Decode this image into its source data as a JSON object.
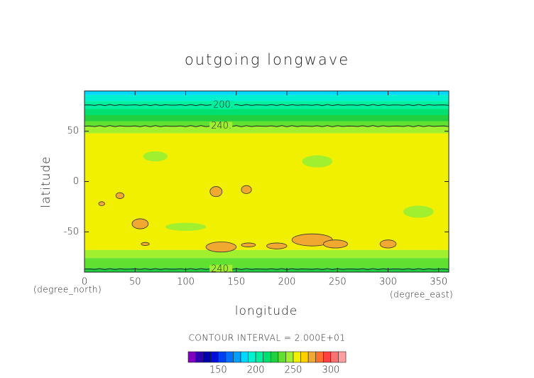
{
  "chart_data": {
    "type": "contour",
    "title": "outgoing longwave",
    "xlabel": "longitude",
    "ylabel": "latitude",
    "xunits": "(degree_east)",
    "yunits": "(degree_north)",
    "xlim": [
      0,
      360
    ],
    "ylim": [
      -90,
      90
    ],
    "xticks": [
      0,
      50,
      100,
      150,
      200,
      250,
      300,
      350
    ],
    "yticks": [
      -50,
      0,
      50
    ],
    "contour_interval": "CONTOUR INTERVAL = 2.000E+01",
    "levels": [
      110,
      120,
      130,
      140,
      150,
      160,
      170,
      180,
      190,
      200,
      210,
      220,
      230,
      240,
      250,
      260,
      270,
      280,
      290,
      300,
      310,
      320
    ],
    "level_colors": [
      "#8000c0",
      "#3000b0",
      "#0000b0",
      "#0010d8",
      "#0040f0",
      "#0070ff",
      "#00a0ff",
      "#00d8ff",
      "#00f0d0",
      "#00f0a0",
      "#00e070",
      "#20d040",
      "#60e030",
      "#a0f030",
      "#f0f000",
      "#ffd000",
      "#f0a830",
      "#ff7030",
      "#ff4040",
      "#ff7070",
      "#ffa0a0"
    ],
    "colorbar_ticks": [
      150,
      200,
      250,
      300
    ],
    "zonal_bands": {
      "lat_edges": [
        90,
        86,
        80,
        72,
        66,
        60,
        55,
        48,
        -68,
        -76,
        -86,
        -90
      ],
      "values": [
        185,
        195,
        205,
        215,
        225,
        235,
        245,
        255,
        245,
        235,
        225
      ]
    },
    "patches": [
      {
        "lon": 55,
        "lat": -42,
        "dlon": 8,
        "dlat": 5,
        "value": 275
      },
      {
        "lon": 135,
        "lat": -65,
        "dlon": 15,
        "dlat": 5,
        "value": 275
      },
      {
        "lon": 162,
        "lat": -63,
        "dlon": 7,
        "dlat": 2,
        "value": 275
      },
      {
        "lon": 190,
        "lat": -64,
        "dlon": 10,
        "dlat": 3,
        "value": 275
      },
      {
        "lon": 225,
        "lat": -58,
        "dlon": 20,
        "dlat": 6,
        "value": 275
      },
      {
        "lon": 248,
        "lat": -62,
        "dlon": 12,
        "dlat": 4,
        "value": 275
      },
      {
        "lon": 300,
        "lat": -62,
        "dlon": 8,
        "dlat": 4,
        "value": 275
      },
      {
        "lon": 130,
        "lat": -10,
        "dlon": 6,
        "dlat": 5,
        "value": 275
      },
      {
        "lon": 160,
        "lat": -8,
        "dlon": 5,
        "dlat": 4,
        "value": 275
      },
      {
        "lon": 35,
        "lat": -14,
        "dlon": 4,
        "dlat": 3,
        "value": 275
      },
      {
        "lon": 17,
        "lat": -22,
        "dlon": 3,
        "dlat": 2,
        "value": 275
      },
      {
        "lon": 60,
        "lat": -62,
        "dlon": 4,
        "dlat": 1.5,
        "value": 275
      },
      {
        "lon": 70,
        "lat": 25,
        "dlon": 12,
        "dlat": 5,
        "value": 245
      },
      {
        "lon": 230,
        "lat": 20,
        "dlon": 15,
        "dlat": 6,
        "value": 245
      },
      {
        "lon": 330,
        "lat": -30,
        "dlon": 15,
        "dlat": 6,
        "value": 245
      },
      {
        "lon": 100,
        "lat": -45,
        "dlon": 20,
        "dlat": 4,
        "value": 245
      }
    ],
    "contours": [
      {
        "level": 200,
        "label": "200.",
        "lat": 76,
        "label_lon": 127
      },
      {
        "level": 240,
        "label": "240.",
        "lat": 55,
        "label_lon": 125
      },
      {
        "level": 240,
        "label": "240.",
        "lat": -87,
        "label_lon": 125
      }
    ]
  }
}
